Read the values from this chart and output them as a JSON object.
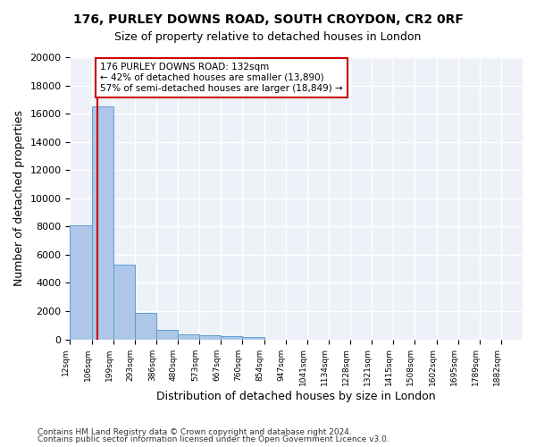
{
  "title1": "176, PURLEY DOWNS ROAD, SOUTH CROYDON, CR2 0RF",
  "title2": "Size of property relative to detached houses in London",
  "xlabel": "Distribution of detached houses by size in London",
  "ylabel": "Number of detached properties",
  "footer1": "Contains HM Land Registry data © Crown copyright and database right 2024.",
  "footer2": "Contains public sector information licensed under the Open Government Licence v3.0.",
  "bin_labels": [
    "12sqm",
    "106sqm",
    "199sqm",
    "293sqm",
    "386sqm",
    "480sqm",
    "573sqm",
    "667sqm",
    "760sqm",
    "854sqm",
    "947sqm",
    "1041sqm",
    "1134sqm",
    "1228sqm",
    "1321sqm",
    "1415sqm",
    "1508sqm",
    "1602sqm",
    "1695sqm",
    "1789sqm",
    "1882sqm"
  ],
  "bar_values": [
    8100,
    16500,
    5300,
    1850,
    700,
    380,
    280,
    220,
    170,
    0,
    0,
    0,
    0,
    0,
    0,
    0,
    0,
    0,
    0,
    0,
    0
  ],
  "bar_color": "#aec6e8",
  "bar_edge_color": "#5a9fd4",
  "bg_color": "#eef2f8",
  "grid_color": "#ffffff",
  "vline_x": 1.26,
  "vline_color": "#cc0000",
  "annotation_text": "176 PURLEY DOWNS ROAD: 132sqm\n← 42% of detached houses are smaller (13,890)\n57% of semi-detached houses are larger (18,849) →",
  "annotation_box_color": "#ffffff",
  "annotation_border_color": "#cc0000",
  "ylim": [
    0,
    20000
  ],
  "yticks": [
    0,
    2000,
    4000,
    6000,
    8000,
    10000,
    12000,
    14000,
    16000,
    18000,
    20000
  ]
}
